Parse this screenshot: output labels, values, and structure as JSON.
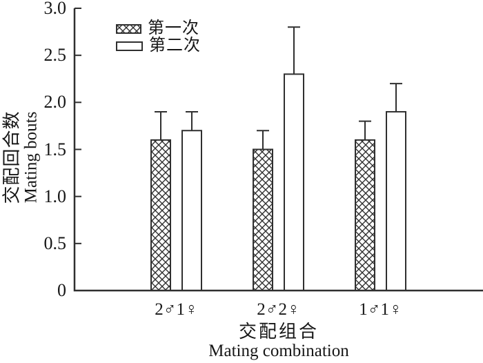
{
  "chart_data": {
    "type": "bar",
    "title": "",
    "categories": [
      "2♂1♀",
      "2♂2♀",
      "1♂1♀"
    ],
    "series": [
      {
        "name": "第一次",
        "pattern": "crosshatch",
        "values": [
          1.6,
          1.5,
          1.6
        ],
        "errors_plus": [
          0.3,
          0.2,
          0.2
        ]
      },
      {
        "name": "第二次",
        "pattern": "plain",
        "values": [
          1.7,
          2.3,
          1.9
        ],
        "errors_plus": [
          0.2,
          0.5,
          0.3
        ]
      }
    ],
    "ylabel_zh": "交配回合数",
    "ylabel_en": "Mating bouts",
    "xlabel_zh": "交配组合",
    "xlabel_en": "Mating combination",
    "ylim": [
      0,
      3.0
    ],
    "ytick_values": [
      0,
      0.5,
      1.0,
      1.5,
      2.0,
      2.5,
      3.0
    ],
    "ytick_labels": [
      "0",
      "0.5",
      "1.0",
      "1.5",
      "2.0",
      "2.5",
      "3.0"
    ],
    "grid": false,
    "legend_position": "top-left-inside",
    "bar_fill": "#ffffff",
    "line_color": "#2f2f2f",
    "text_color": "#161616"
  }
}
